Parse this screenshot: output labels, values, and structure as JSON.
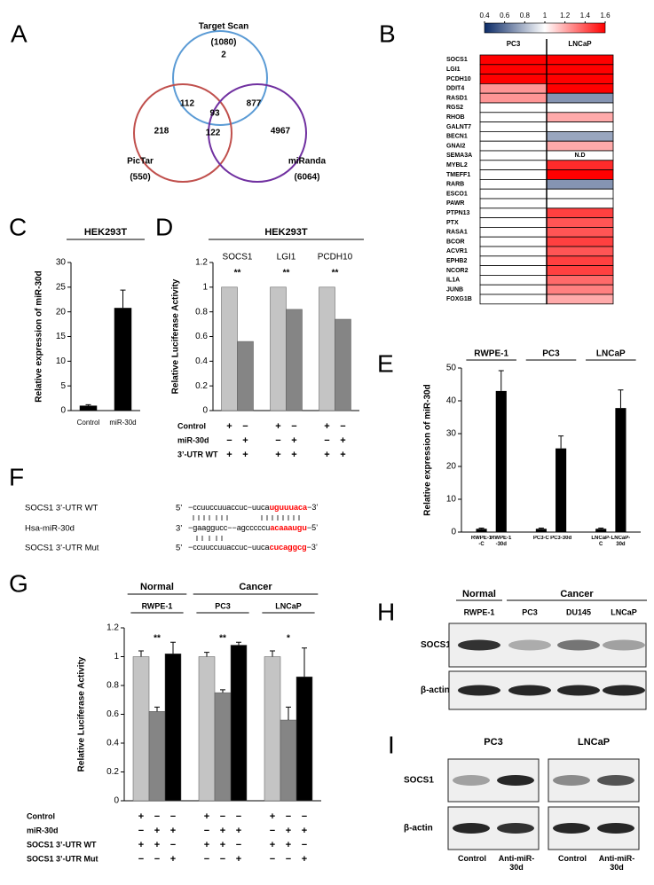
{
  "panel_labels": [
    "A",
    "B",
    "C",
    "D",
    "E",
    "F",
    "G",
    "H",
    "I"
  ],
  "venn": {
    "sets": [
      {
        "name": "Target Scan",
        "count": "(1080)"
      },
      {
        "name": "PicTar",
        "count": "(550)"
      },
      {
        "name": "miRanda",
        "count": "(6064)"
      }
    ],
    "regions": [
      2,
      112,
      877,
      93,
      218,
      122,
      4967
    ]
  },
  "chart_data": [
    {
      "type": "heatmap",
      "columns": [
        "PC3",
        "LNCaP"
      ],
      "rows": [
        "SOCS1",
        "LGI1",
        "PCDH10",
        "DDIT4",
        "RASD1",
        "RGS2",
        "RHOB",
        "GALNT7",
        "BECN1",
        "GNAI2",
        "SEMA3A",
        "MYBL2",
        "TMEFF1",
        "RARB",
        "ESCO1",
        "PAWR",
        "PTPN13",
        "PTX",
        "RASA1",
        "BCOR",
        "ACVR1",
        "EPHB2",
        "NCOR2",
        "IL1A",
        "JUNB",
        "FOXG1B"
      ],
      "values": [
        [
          1.6,
          1.6
        ],
        [
          1.6,
          1.6
        ],
        [
          1.6,
          1.6
        ],
        [
          1.25,
          1.6
        ],
        [
          1.25,
          0.7
        ],
        [
          1,
          1
        ],
        [
          1,
          1.2
        ],
        [
          1,
          1
        ],
        [
          1,
          0.75
        ],
        [
          1,
          1.2
        ],
        [
          1,
          null
        ],
        [
          1,
          1.5
        ],
        [
          1,
          1.6
        ],
        [
          1,
          0.7
        ],
        [
          1,
          1
        ],
        [
          1,
          1
        ],
        [
          1,
          1.45
        ],
        [
          1,
          1.4
        ],
        [
          1,
          1.4
        ],
        [
          1,
          1.45
        ],
        [
          1,
          1.4
        ],
        [
          1,
          1.45
        ],
        [
          1,
          1.45
        ],
        [
          1,
          1.35
        ],
        [
          1,
          1.3
        ],
        [
          1,
          1.2
        ]
      ],
      "na_label": "N.D",
      "colorbar": {
        "lim": [
          0.4,
          1.6
        ],
        "ticks": [
          0.4,
          0.6,
          0.8,
          1,
          1.2,
          1.4,
          1.6
        ],
        "colors": [
          "#0b2a66",
          "#ffffff",
          "#ff0000"
        ]
      }
    },
    {
      "type": "bar",
      "title": "HEK293T",
      "ylabel": "Relative expression of miR-30d",
      "categories": [
        "Control",
        "miR-30d"
      ],
      "values": [
        1,
        20.8
      ],
      "errors": [
        0.2,
        3.6
      ],
      "color": "#000000",
      "ylim": [
        0,
        30
      ],
      "yticks": [
        0,
        5,
        10,
        15,
        20,
        25,
        30
      ]
    },
    {
      "type": "grouped_bar",
      "title": "HEK293T",
      "ylabel": "Relative Luciferase Activity",
      "categories": [
        "SOCS1",
        "LGI1",
        "PCDH10"
      ],
      "series": [
        {
          "color": "#c4c4c4",
          "values": [
            1,
            1,
            1
          ]
        },
        {
          "color": "#858585",
          "values": [
            0.56,
            0.82,
            0.74
          ]
        }
      ],
      "significance": [
        "**",
        "**",
        "**"
      ],
      "ylim": [
        0,
        1.2
      ],
      "yticks": [
        0,
        0.2,
        0.4,
        0.6,
        0.8,
        1,
        1.2
      ],
      "conditions": [
        {
          "label": "Control",
          "marks": [
            [
              "+",
              "−"
            ],
            [
              "+",
              "−"
            ],
            [
              "+",
              "−"
            ]
          ]
        },
        {
          "label": "miR-30d",
          "marks": [
            [
              "−",
              "+"
            ],
            [
              "−",
              "+"
            ],
            [
              "−",
              "+"
            ]
          ]
        },
        {
          "label": "3’-UTR WT",
          "marks": [
            [
              "+",
              "+"
            ],
            [
              "+",
              "+"
            ],
            [
              "+",
              "+"
            ]
          ]
        }
      ]
    },
    {
      "type": "bar",
      "ylabel": "Relative expression of miR-30d",
      "color": "#000000",
      "groups": [
        {
          "label": "RWPE-1",
          "categories": [
            "RWPE-1-C",
            "RWPE-1-30d"
          ],
          "values": [
            1,
            43
          ],
          "errors": [
            0.2,
            6.2
          ]
        },
        {
          "label": "PC3",
          "categories": [
            "PC3-C",
            "PC3-30d"
          ],
          "values": [
            1,
            25.5
          ],
          "errors": [
            0.2,
            3.8
          ]
        },
        {
          "label": "LNCaP",
          "categories": [
            "LNCaP-C",
            "LNCaP-30d"
          ],
          "values": [
            1,
            37.8
          ],
          "errors": [
            0.2,
            5.5
          ]
        }
      ],
      "ylim": [
        0,
        50
      ],
      "yticks": [
        0,
        10,
        20,
        30,
        40,
        50
      ]
    },
    {
      "type": "grouped_bar",
      "ylabel": "Relative Luciferase Activity",
      "supergroups": [
        {
          "label": "Normal",
          "categories": [
            "RWPE-1"
          ]
        },
        {
          "label": "Cancer",
          "categories": [
            "PC3",
            "LNCaP"
          ]
        }
      ],
      "series": [
        {
          "color": "#c4c4c4",
          "values": [
            1,
            1,
            1
          ],
          "errors": [
            0.04,
            0.03,
            0.04
          ]
        },
        {
          "color": "#858585",
          "values": [
            0.62,
            0.75,
            0.56
          ],
          "errors": [
            0.03,
            0.02,
            0.09
          ]
        },
        {
          "color": "#000000",
          "values": [
            1.02,
            1.08,
            0.86
          ],
          "errors": [
            0.08,
            0.02,
            0.2
          ]
        }
      ],
      "significance": [
        "**",
        "**",
        "*"
      ],
      "ylim": [
        0,
        1.2
      ],
      "yticks": [
        0,
        0.2,
        0.4,
        0.6,
        0.8,
        1,
        1.2
      ],
      "conditions": [
        {
          "label": "Control",
          "marks": [
            [
              "+",
              "−",
              "−"
            ],
            [
              "+",
              "−",
              "−"
            ],
            [
              "+",
              "−",
              "−"
            ]
          ]
        },
        {
          "label": "miR-30d",
          "marks": [
            [
              "−",
              "+",
              "+"
            ],
            [
              "−",
              "+",
              "+"
            ],
            [
              "−",
              "+",
              "+"
            ]
          ]
        },
        {
          "label": "SOCS1 3’-UTR WT",
          "marks": [
            [
              "+",
              "+",
              "−"
            ],
            [
              "+",
              "+",
              "−"
            ],
            [
              "+",
              "+",
              "−"
            ]
          ]
        },
        {
          "label": "SOCS1 3’-UTR Mut",
          "marks": [
            [
              "−",
              "−",
              "+"
            ],
            [
              "−",
              "−",
              "+"
            ],
            [
              "−",
              "−",
              "+"
            ]
          ]
        }
      ]
    }
  ],
  "sequence": {
    "rows": [
      {
        "label": "SOCS1 3’-UTR WT",
        "left": "5’",
        "seq": "−ccuuccuuaccuc−uuca",
        "seed": "uguuuaca",
        "right": "−3’"
      },
      {
        "label": "Hsa-miR-30d",
        "left": "3’",
        "seq": "−gaaggucc−−agcccccu",
        "seed": "acaaaugu",
        "right": "−5’"
      },
      {
        "label": "SOCS1 3’-UTR Mut",
        "left": "5’",
        "seq": "−ccuuccuuaccuc−uuca",
        "seed": "cucaggcg",
        "right": "−3’"
      }
    ]
  },
  "blot_h": {
    "groups": [
      {
        "label": "Normal",
        "lanes": [
          "RWPE-1"
        ]
      },
      {
        "label": "Cancer",
        "lanes": [
          "PC3",
          "DU145",
          "LNCaP"
        ]
      }
    ],
    "rows": [
      "SOCS1",
      "β-actin"
    ]
  },
  "blot_i": {
    "panels": [
      {
        "label": "PC3",
        "lanes": [
          "Control",
          "Anti-miR-30d"
        ]
      },
      {
        "label": "LNCaP",
        "lanes": [
          "Control",
          "Anti-miR-30d"
        ]
      }
    ],
    "rows": [
      "SOCS1",
      "β-actin"
    ]
  }
}
